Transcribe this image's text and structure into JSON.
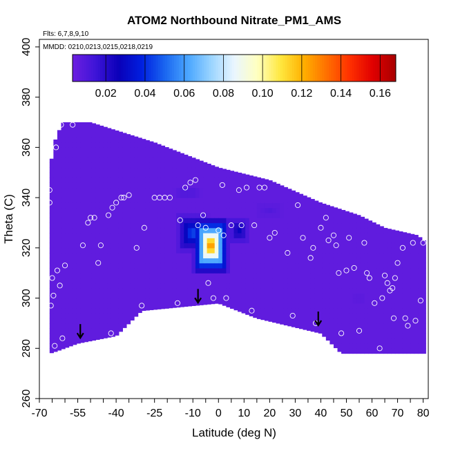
{
  "chart_data": {
    "type": "heatmap",
    "title": "ATOM2 Northbound Nitrate_PM1_AMS",
    "flights_note": "Flts: 6,7,8,9,10",
    "dates_note": "MMDD: 0210,0213,0215,0218,0219",
    "xlabel": "Latitude (deg N)",
    "ylabel": "Theta (C)",
    "xlim": [
      -70,
      82
    ],
    "ylim": [
      260,
      403
    ],
    "x_ticks": [
      -70,
      -65,
      -60,
      -55,
      -50,
      -45,
      -40,
      -35,
      -30,
      -25,
      -20,
      -15,
      -10,
      -5,
      0,
      5,
      10,
      15,
      20,
      25,
      30,
      35,
      40,
      45,
      50,
      55,
      60,
      65,
      70,
      75,
      80
    ],
    "x_tick_labels": [
      "-70",
      "-55",
      "-40",
      "-25",
      "-10",
      "0",
      "10",
      "20",
      "30",
      "40",
      "50",
      "60",
      "70",
      "80"
    ],
    "x_tick_label_values": [
      -70,
      -55,
      -40,
      -25,
      -10,
      0,
      10,
      20,
      30,
      40,
      50,
      60,
      70,
      80
    ],
    "y_ticks": [
      260,
      280,
      300,
      320,
      340,
      360,
      380,
      400
    ],
    "y_tick_labels": [
      "260",
      "280",
      "300",
      "320",
      "340",
      "360",
      "380",
      "400"
    ],
    "colorbar": {
      "range": [
        0.003,
        0.168
      ],
      "ticks": [
        0.02,
        0.04,
        0.06,
        0.08,
        0.1,
        0.12,
        0.14,
        0.16
      ],
      "tick_labels": [
        "0.02",
        "0.04",
        "0.06",
        "0.08",
        "0.10",
        "0.12",
        "0.14",
        "0.16"
      ],
      "colors": [
        "#6c1fe0",
        "#3e14d8",
        "#0a00b8",
        "#0020e0",
        "#1a66f0",
        "#4aa6ff",
        "#9ad4ff",
        "#eaf6ff",
        "#ffffc0",
        "#ffe840",
        "#ffb000",
        "#ff7000",
        "#ff3000",
        "#e00000",
        "#a80000"
      ]
    },
    "outline_top": [
      [
        -66,
        342
      ],
      [
        -65,
        360
      ],
      [
        -61,
        370
      ],
      [
        -50,
        370
      ],
      [
        -25,
        362
      ],
      [
        0,
        352
      ],
      [
        20,
        347
      ],
      [
        40,
        338
      ],
      [
        55,
        333
      ],
      [
        65,
        328
      ],
      [
        78,
        325
      ],
      [
        80,
        323
      ]
    ],
    "outline_bottom": [
      [
        80,
        278
      ],
      [
        48,
        278
      ],
      [
        40,
        286
      ],
      [
        15,
        292
      ],
      [
        0,
        298
      ],
      [
        -30,
        295
      ],
      [
        -40,
        285
      ],
      [
        -55,
        282
      ],
      [
        -63,
        279
      ],
      [
        -66,
        278
      ]
    ],
    "background_level": 0.006,
    "hotspots": [
      {
        "lat": -3,
        "theta": 321,
        "peak": 0.14,
        "lat_radius": 8,
        "theta_radius": 13
      },
      {
        "lat": -10,
        "theta": 326,
        "peak": 0.05,
        "lat_radius": 8,
        "theta_radius": 10
      },
      {
        "lat": 8,
        "theta": 327,
        "peak": 0.03,
        "lat_radius": 6,
        "theta_radius": 8
      },
      {
        "lat": -12,
        "theta": 342,
        "peak": 0.012,
        "lat_radius": 14,
        "theta_radius": 6
      },
      {
        "lat": 20,
        "theta": 335,
        "peak": 0.01,
        "lat_radius": 18,
        "theta_radius": 10
      },
      {
        "lat": 55,
        "theta": 300,
        "peak": 0.008,
        "lat_radius": 15,
        "theta_radius": 12
      }
    ],
    "arrows": [
      [
        -54,
        288
      ],
      [
        -8,
        302
      ],
      [
        39,
        293
      ]
    ],
    "observations": [
      [
        -66,
        343
      ],
      [
        -66,
        338
      ],
      [
        -65.5,
        297
      ],
      [
        -65,
        308
      ],
      [
        -64.5,
        301
      ],
      [
        -64,
        281
      ],
      [
        -63.5,
        360
      ],
      [
        -63,
        311
      ],
      [
        -62,
        305
      ],
      [
        -61,
        284
      ],
      [
        -60,
        313
      ],
      [
        -61.5,
        369
      ],
      [
        -57,
        369
      ],
      [
        -53,
        321
      ],
      [
        -51,
        330
      ],
      [
        -50,
        332
      ],
      [
        -48.5,
        332
      ],
      [
        -47,
        314
      ],
      [
        -46,
        321
      ],
      [
        -43,
        333
      ],
      [
        -42,
        286
      ],
      [
        -41.5,
        336
      ],
      [
        -40,
        338
      ],
      [
        -38,
        340
      ],
      [
        -37,
        340
      ],
      [
        -35,
        341
      ],
      [
        -32,
        320
      ],
      [
        -30,
        297
      ],
      [
        -29,
        328
      ],
      [
        -25,
        340
      ],
      [
        -23,
        340
      ],
      [
        -21,
        340
      ],
      [
        -19,
        340
      ],
      [
        -16,
        298
      ],
      [
        -15,
        331
      ],
      [
        -13,
        344
      ],
      [
        -11,
        346
      ],
      [
        -9,
        347
      ],
      [
        -8,
        329
      ],
      [
        -6,
        333
      ],
      [
        -5,
        328
      ],
      [
        -4,
        306
      ],
      [
        -2,
        300
      ],
      [
        0,
        327
      ],
      [
        1.5,
        345
      ],
      [
        2,
        325
      ],
      [
        3,
        300
      ],
      [
        5,
        329
      ],
      [
        8,
        343
      ],
      [
        9,
        329
      ],
      [
        11,
        344
      ],
      [
        13,
        295
      ],
      [
        14,
        329
      ],
      [
        16,
        344
      ],
      [
        18,
        344
      ],
      [
        20,
        324
      ],
      [
        22,
        326
      ],
      [
        24,
        347
      ],
      [
        27,
        318
      ],
      [
        29,
        293
      ],
      [
        31,
        337
      ],
      [
        33,
        324
      ],
      [
        36,
        316
      ],
      [
        37,
        320
      ],
      [
        38,
        290
      ],
      [
        40,
        328
      ],
      [
        42,
        332
      ],
      [
        43,
        323
      ],
      [
        45,
        325
      ],
      [
        46,
        321
      ],
      [
        47,
        310
      ],
      [
        48,
        286
      ],
      [
        50,
        311
      ],
      [
        51,
        324
      ],
      [
        53,
        312
      ],
      [
        55,
        287
      ],
      [
        57,
        322
      ],
      [
        58,
        310
      ],
      [
        59,
        308
      ],
      [
        61,
        298
      ],
      [
        63,
        280
      ],
      [
        64,
        300
      ],
      [
        65,
        309
      ],
      [
        66,
        306
      ],
      [
        67,
        303
      ],
      [
        68,
        304
      ],
      [
        68.5,
        292
      ],
      [
        69,
        308
      ],
      [
        70,
        314
      ],
      [
        72,
        320
      ],
      [
        73,
        292
      ],
      [
        74,
        289
      ],
      [
        76,
        322
      ],
      [
        77,
        291
      ],
      [
        79,
        299
      ],
      [
        80,
        322
      ]
    ]
  }
}
